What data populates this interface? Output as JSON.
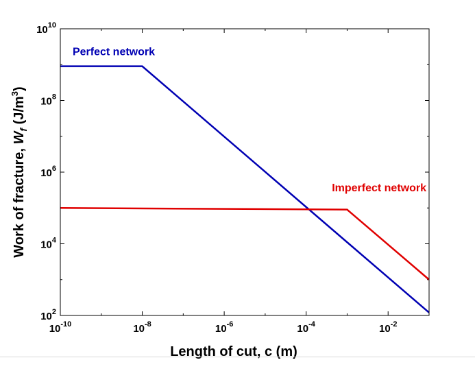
{
  "chart_data": {
    "type": "line",
    "xlabel": "Length of cut, c (m)",
    "ylabel": {
      "prefix": "Work of fracture, ",
      "symbol": "W",
      "subscript": "f",
      "unit_open": " (J/m",
      "unit_sup": "3",
      "unit_close": ")"
    },
    "x_scale": "log",
    "y_scale": "log",
    "xlim": [
      1e-10,
      0.1
    ],
    "ylim": [
      100,
      10000000000
    ],
    "x_ticks": [
      {
        "base": "10",
        "exp": "-10",
        "value": 1e-10
      },
      {
        "base": "10",
        "exp": "-8",
        "value": 1e-08
      },
      {
        "base": "10",
        "exp": "-6",
        "value": 1e-06
      },
      {
        "base": "10",
        "exp": "-4",
        "value": 0.0001
      },
      {
        "base": "10",
        "exp": "-2",
        "value": 0.01
      }
    ],
    "y_ticks": [
      {
        "base": "10",
        "exp": "2",
        "value": 100
      },
      {
        "base": "10",
        "exp": "4",
        "value": 10000
      },
      {
        "base": "10",
        "exp": "6",
        "value": 1000000
      },
      {
        "base": "10",
        "exp": "8",
        "value": 100000000
      },
      {
        "base": "10",
        "exp": "10",
        "value": 10000000000
      }
    ],
    "grid": false,
    "series": [
      {
        "name": "Perfect network",
        "color": "#0000b3",
        "x": [
          1e-10,
          1e-08,
          0.1
        ],
        "y": [
          900000000,
          900000000,
          120
        ]
      },
      {
        "name": "Imperfect network",
        "color": "#e00000",
        "x": [
          1e-10,
          0.001,
          0.1
        ],
        "y": [
          100000,
          90000,
          1000
        ]
      }
    ]
  }
}
